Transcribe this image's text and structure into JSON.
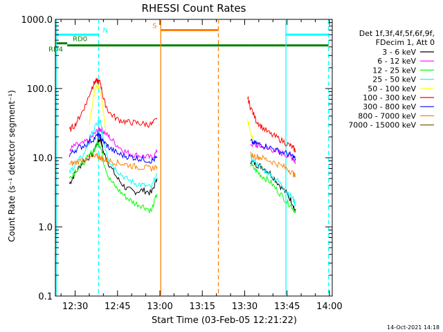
{
  "chart_data": {
    "type": "line",
    "title": "RHESSI Count Rates",
    "xlabel": "Start Time (03-Feb-05 12:21:22)",
    "ylabel": "Count Rate (s⁻¹ detector segment⁻¹)",
    "yscale": "log",
    "ylim": [
      0.1,
      1000
    ],
    "xlim_minutes": [
      3,
      101
    ],
    "x_units": "minutes after 12:20",
    "x_ticks": [
      {
        "value": 10,
        "label": "12:30"
      },
      {
        "value": 25,
        "label": "12:45"
      },
      {
        "value": 40,
        "label": "13:00"
      },
      {
        "value": 55,
        "label": "13:15"
      },
      {
        "value": 70,
        "label": "13:30"
      },
      {
        "value": 85,
        "label": "13:45"
      },
      {
        "value": 100,
        "label": "14:00"
      }
    ],
    "y_ticks": [
      {
        "value": 0.1,
        "label": "0.1"
      },
      {
        "value": 1,
        "label": "1.0"
      },
      {
        "value": 10,
        "label": "10.0"
      },
      {
        "value": 100,
        "label": "100.0"
      },
      {
        "value": 1000,
        "label": "1000.0"
      }
    ],
    "legend_header": [
      "Det 1f,3f,4f,5f,6f,9f,",
      "FDecim 1, Att 0"
    ],
    "series": [
      {
        "name": "3 - 6 keV",
        "color": "#000000",
        "seg1": [
          [
            8,
            4.2
          ],
          [
            10,
            6
          ],
          [
            13,
            9
          ],
          [
            16,
            11
          ],
          [
            18,
            17
          ],
          [
            19,
            19
          ],
          [
            20,
            12
          ],
          [
            22,
            8
          ],
          [
            25,
            5
          ],
          [
            28,
            3.6
          ],
          [
            31,
            3.2
          ],
          [
            34,
            3.4
          ],
          [
            37,
            3.1
          ],
          [
            39,
            5
          ]
        ],
        "seg2": [
          [
            72,
            9
          ],
          [
            74,
            8
          ],
          [
            76,
            7.5
          ],
          [
            79,
            6
          ],
          [
            82,
            4.2
          ],
          [
            85,
            3
          ],
          [
            87,
            2.2
          ],
          [
            88,
            1.6
          ]
        ]
      },
      {
        "name": "6 - 12 keV",
        "color": "#ff00ff",
        "seg1": [
          [
            8,
            13
          ],
          [
            10,
            15
          ],
          [
            13,
            16
          ],
          [
            16,
            20
          ],
          [
            18,
            25
          ],
          [
            19,
            26
          ],
          [
            20,
            24
          ],
          [
            22,
            20
          ],
          [
            25,
            15
          ],
          [
            28,
            12
          ],
          [
            31,
            11
          ],
          [
            34,
            10.5
          ],
          [
            37,
            10
          ],
          [
            39,
            12
          ]
        ],
        "seg2": [
          [
            72,
            16
          ],
          [
            74,
            15
          ],
          [
            76,
            14.5
          ],
          [
            79,
            13.5
          ],
          [
            82,
            12
          ],
          [
            85,
            11
          ],
          [
            87,
            10
          ],
          [
            88,
            8.5
          ]
        ]
      },
      {
        "name": "12 - 25 keV",
        "color": "#00ff00",
        "seg1": [
          [
            8,
            5
          ],
          [
            10,
            6.5
          ],
          [
            13,
            8.5
          ],
          [
            16,
            12
          ],
          [
            18,
            16
          ],
          [
            19,
            15
          ],
          [
            20,
            9
          ],
          [
            22,
            5
          ],
          [
            25,
            3.5
          ],
          [
            28,
            2.7
          ],
          [
            31,
            2.2
          ],
          [
            34,
            2
          ],
          [
            37,
            1.7
          ],
          [
            39,
            3
          ]
        ],
        "seg2": [
          [
            72,
            8
          ],
          [
            74,
            6.5
          ],
          [
            76,
            5.5
          ],
          [
            79,
            4.5
          ],
          [
            82,
            3.2
          ],
          [
            85,
            2.3
          ],
          [
            87,
            1.9
          ],
          [
            88,
            1.6
          ]
        ]
      },
      {
        "name": "25 - 50 keV",
        "color": "#00ffff",
        "seg1": [
          [
            8,
            6
          ],
          [
            10,
            8
          ],
          [
            13,
            11
          ],
          [
            16,
            22
          ],
          [
            18,
            33
          ],
          [
            19,
            32
          ],
          [
            20,
            18
          ],
          [
            22,
            9
          ],
          [
            25,
            6.5
          ],
          [
            28,
            5
          ],
          [
            31,
            4.3
          ],
          [
            34,
            4
          ],
          [
            37,
            3.7
          ],
          [
            39,
            6
          ]
        ],
        "seg2": [
          [
            72,
            10
          ],
          [
            74,
            8.5
          ],
          [
            76,
            7
          ],
          [
            79,
            5.8
          ],
          [
            82,
            4.5
          ],
          [
            85,
            3.3
          ],
          [
            87,
            2.6
          ],
          [
            88,
            2.1
          ]
        ]
      },
      {
        "name": "50 - 100 keV",
        "color": "#ffff00",
        "seg1": [
          [
            15,
            30
          ],
          [
            16,
            55
          ],
          [
            17,
            95
          ],
          [
            18,
            110
          ],
          [
            19,
            90
          ],
          [
            20,
            45
          ],
          [
            21,
            22
          ]
        ],
        "seg2": [
          [
            71,
            35
          ],
          [
            72,
            24
          ],
          [
            73,
            18
          ]
        ]
      },
      {
        "name": "100 - 300 keV",
        "color": "#ff0000",
        "seg1": [
          [
            8,
            25
          ],
          [
            10,
            30
          ],
          [
            12,
            42
          ],
          [
            14,
            62
          ],
          [
            16,
            105
          ],
          [
            17,
            125
          ],
          [
            18,
            128
          ],
          [
            19,
            120
          ],
          [
            20,
            70
          ],
          [
            22,
            45
          ],
          [
            25,
            36
          ],
          [
            28,
            33
          ],
          [
            31,
            32
          ],
          [
            34,
            31
          ],
          [
            37,
            30
          ],
          [
            39,
            36
          ]
        ],
        "seg2": [
          [
            71,
            75
          ],
          [
            72,
            55
          ],
          [
            74,
            35
          ],
          [
            76,
            28
          ],
          [
            79,
            22
          ],
          [
            82,
            19
          ],
          [
            85,
            16
          ],
          [
            87,
            14
          ],
          [
            88,
            12.5
          ]
        ]
      },
      {
        "name": "300 - 800 keV",
        "color": "#0000ff",
        "seg1": [
          [
            8,
            11
          ],
          [
            10,
            13
          ],
          [
            13,
            15
          ],
          [
            16,
            18
          ],
          [
            18,
            21
          ],
          [
            19,
            20
          ],
          [
            20,
            17
          ],
          [
            22,
            14
          ],
          [
            25,
            11.5
          ],
          [
            28,
            10.5
          ],
          [
            31,
            10
          ],
          [
            34,
            9.5
          ],
          [
            37,
            9
          ],
          [
            39,
            10
          ]
        ],
        "seg2": [
          [
            72,
            17
          ],
          [
            74,
            16
          ],
          [
            76,
            15.5
          ],
          [
            79,
            14
          ],
          [
            82,
            12.5
          ],
          [
            85,
            11.5
          ],
          [
            87,
            10.5
          ],
          [
            88,
            9.5
          ]
        ]
      },
      {
        "name": "800 - 7000 keV",
        "color": "#ff8000",
        "seg1": [
          [
            8,
            8
          ],
          [
            10,
            8.5
          ],
          [
            13,
            9.5
          ],
          [
            16,
            10
          ],
          [
            18,
            10.5
          ],
          [
            19,
            10
          ],
          [
            20,
            9.5
          ],
          [
            22,
            9
          ],
          [
            25,
            8.5
          ],
          [
            28,
            8
          ],
          [
            31,
            7.5
          ],
          [
            34,
            7.2
          ],
          [
            37,
            7
          ],
          [
            39,
            7.5
          ]
        ],
        "seg2": [
          [
            72,
            11
          ],
          [
            74,
            10.5
          ],
          [
            76,
            10
          ],
          [
            79,
            9
          ],
          [
            82,
            8
          ],
          [
            85,
            7
          ],
          [
            87,
            6
          ],
          [
            88,
            5.3
          ]
        ]
      },
      {
        "name": "7000 - 15000 keV",
        "color": "#806000",
        "seg1": [],
        "seg2": []
      }
    ],
    "vertical_lines": [
      {
        "x": 3.3,
        "color": "#00ffff",
        "style": "solid"
      },
      {
        "x": 18.3,
        "color": "#00ffff",
        "style": "dashed"
      },
      {
        "x": 40.3,
        "color": "#ff8000",
        "style": "solid"
      },
      {
        "x": 60.7,
        "color": "#ff8000",
        "style": "dashed"
      },
      {
        "x": 84.6,
        "color": "#00ffff",
        "style": "solid"
      },
      {
        "x": 99.7,
        "color": "#00ffff",
        "style": "dashed"
      }
    ],
    "flag_bars": [
      {
        "label": "N",
        "color": "#00ffff",
        "segments": [
          [
            3.3,
            18.3
          ],
          [
            84.6,
            99.7
          ]
        ],
        "y": 600
      },
      {
        "label": "S",
        "color": "#ff8000",
        "segments": [
          [
            40.3,
            60.7
          ]
        ],
        "y": 700
      },
      {
        "label": "RD0",
        "color": "#008000",
        "segments": [
          [
            3.3,
            7.2
          ]
        ],
        "y": 450
      },
      {
        "label": "RD4",
        "color": "#008000",
        "segments": [
          [
            7.2,
            26.5
          ],
          [
            26.5,
            60.7
          ],
          [
            60.7,
            71.5
          ],
          [
            71.5,
            99.7
          ]
        ],
        "y": 420
      }
    ],
    "footer_timestamp": "14-Oct-2021 14:18"
  }
}
